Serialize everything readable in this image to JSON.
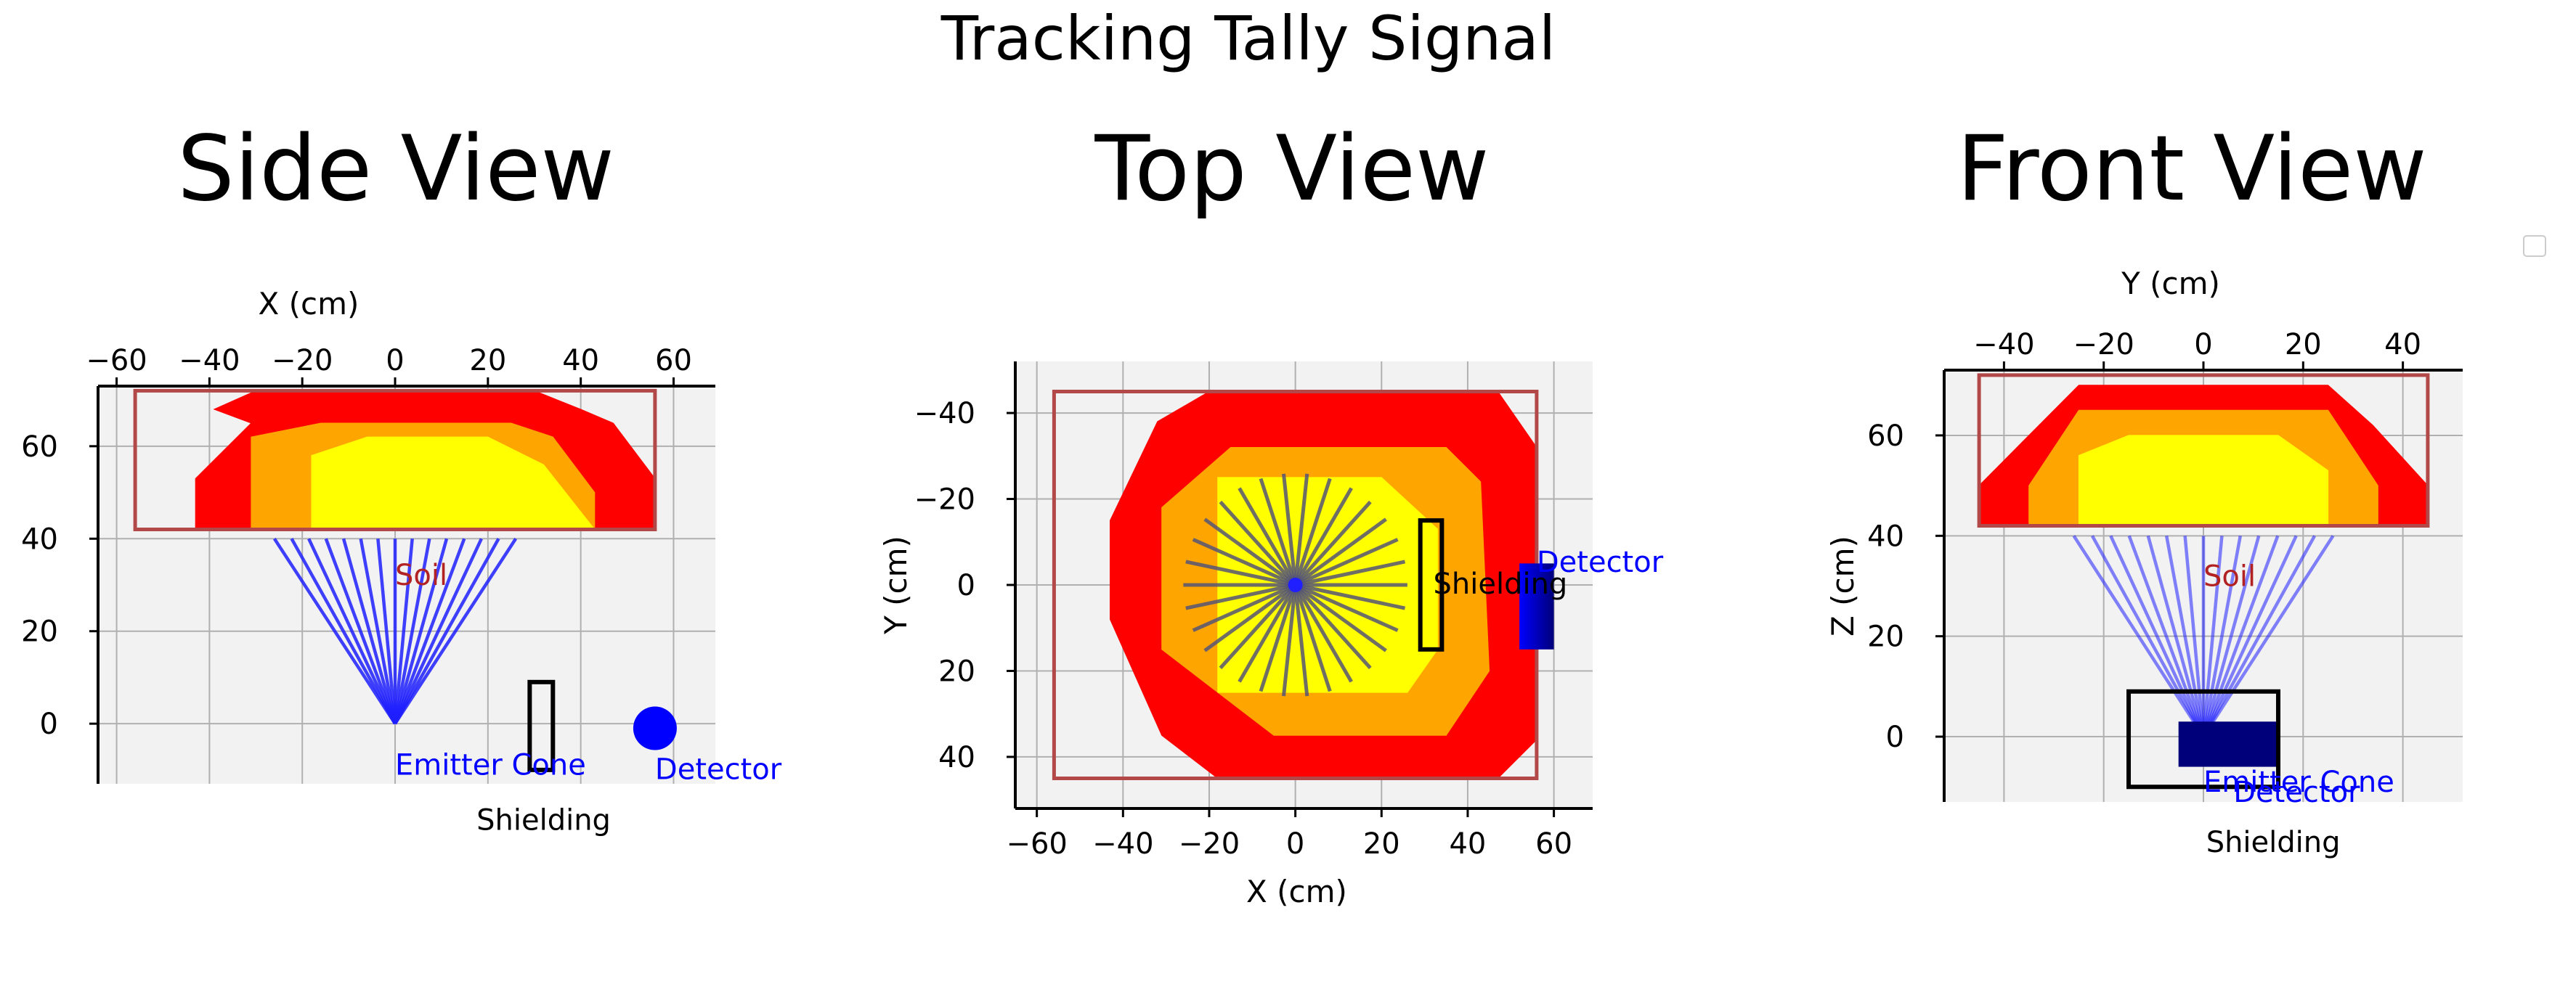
{
  "figure": {
    "suptitle": "Tracking Tally Signal"
  },
  "colors": {
    "panel_bg": "#f2f2f2",
    "grid": "#b0b0b0",
    "soil_outer": "#ff0000",
    "soil_middle": "#ffa500",
    "soil_inner": "#ffff00",
    "soil_box": "#b24848",
    "beam": "#1f1fff",
    "ray_gray": "#555577",
    "detector": "#0000ff",
    "detector_dark": "#00007a",
    "label_blue": "#0000ff",
    "soil_label": "#b22222",
    "axis": "#000000"
  },
  "chart_data": [
    {
      "id": "side",
      "type": "scatter",
      "title": "Side View",
      "xlabel": "X (cm)",
      "ylabel": "",
      "xlim": [
        -64,
        69
      ],
      "ylim": [
        73,
        -13
      ],
      "x_ticks": [
        -60,
        -40,
        -20,
        0,
        20,
        40,
        60
      ],
      "y_ticks": [
        0,
        20,
        40,
        60
      ],
      "tick_labels_x": [
        "−60",
        "−40",
        "−20",
        "0",
        "20",
        "40",
        "60"
      ],
      "tick_labels_y": [
        "0",
        "20",
        "40",
        "60"
      ],
      "grid": true,
      "soil_box": [
        [
          -56,
          42
        ],
        [
          56,
          42
        ],
        [
          56,
          72
        ],
        [
          -56,
          72
        ]
      ],
      "soil_layers": [
        {
          "name": "outer",
          "points": [
            [
              -43,
              42
            ],
            [
              56,
              42
            ],
            [
              56,
              53
            ],
            [
              47,
              65
            ],
            [
              40,
              68
            ],
            [
              30,
              72
            ],
            [
              -30,
              72
            ],
            [
              -39,
              68
            ],
            [
              -31,
              65
            ],
            [
              -43,
              53
            ]
          ]
        },
        {
          "name": "middle",
          "points": [
            [
              -31,
              42
            ],
            [
              43,
              42
            ],
            [
              43,
              50
            ],
            [
              34,
              62
            ],
            [
              25,
              65
            ],
            [
              -16,
              65
            ],
            [
              -31,
              62
            ]
          ]
        },
        {
          "name": "inner",
          "points": [
            [
              -18,
              42
            ],
            [
              43,
              42
            ],
            [
              32,
              56
            ],
            [
              20,
              62
            ],
            [
              -6,
              62
            ],
            [
              -18,
              58
            ]
          ]
        }
      ],
      "emitter": [
        0,
        0
      ],
      "beam_x_ends": [
        -26,
        -22.3,
        -18.6,
        -14.9,
        -11.1,
        -7.4,
        -3.7,
        0,
        3.7,
        7.4,
        11.1,
        14.9,
        18.6,
        22.3,
        26
      ],
      "beam_y_end": 40,
      "shielding_rect": [
        29,
        -10,
        34,
        9
      ],
      "detector": [
        56,
        -1
      ],
      "labels": [
        {
          "text": "Shielding",
          "x": 32,
          "y": -23,
          "color": "#000000"
        },
        {
          "text": "Emitter Cone",
          "x": 0,
          "y": -11,
          "color": "#0000ff"
        },
        {
          "text": "Detector",
          "x": 56,
          "y": -12,
          "color": "#0000ff"
        },
        {
          "text": "Soil",
          "x": 0,
          "y": 30,
          "color": "#b22222"
        }
      ]
    },
    {
      "id": "top",
      "type": "scatter",
      "title": "Top View",
      "xlabel": "X (cm)",
      "ylabel": "Y (cm)",
      "xlim": [
        -65,
        69
      ],
      "ylim": [
        -52,
        52
      ],
      "x_ticks": [
        -60,
        -40,
        -20,
        0,
        20,
        40,
        60
      ],
      "y_ticks": [
        -40,
        -20,
        0,
        20,
        40
      ],
      "tick_labels_x": [
        "−60",
        "−40",
        "−20",
        "0",
        "20",
        "40",
        "60"
      ],
      "tick_labels_y": [
        "−40",
        "−20",
        "0",
        "20",
        "40"
      ],
      "grid": true,
      "soil_box": [
        [
          -56,
          -45
        ],
        [
          56,
          -45
        ],
        [
          56,
          45
        ],
        [
          -56,
          45
        ]
      ],
      "soil_layers": [
        {
          "name": "outer",
          "points": [
            [
              -18,
              45
            ],
            [
              47,
              45
            ],
            [
              56,
              36
            ],
            [
              56,
              -32
            ],
            [
              47,
              -45
            ],
            [
              -20,
              -45
            ],
            [
              -32,
              -38
            ],
            [
              -43,
              -15
            ],
            [
              -43,
              8
            ],
            [
              -31,
              35
            ]
          ]
        },
        {
          "name": "middle",
          "points": [
            [
              -5,
              35
            ],
            [
              35,
              35
            ],
            [
              45,
              20
            ],
            [
              43,
              -24
            ],
            [
              35,
              -32
            ],
            [
              -15,
              -32
            ],
            [
              -31,
              -18
            ],
            [
              -31,
              15
            ]
          ]
        },
        {
          "name": "inner",
          "points": [
            [
              -18,
              25
            ],
            [
              26,
              25
            ],
            [
              33,
              15
            ],
            [
              33,
              -13
            ],
            [
              20,
              -25
            ],
            [
              -18,
              -25
            ]
          ]
        }
      ],
      "emitter": [
        0,
        0
      ],
      "ray_length": 26,
      "ray_count": 30,
      "shielding_rect": [
        29,
        -15,
        34,
        15
      ],
      "detector_rect": [
        52,
        -5,
        60,
        15
      ],
      "labels": [
        {
          "text": "Shielding",
          "x": 32,
          "y": 2,
          "color": "#000000"
        },
        {
          "text": "Detector",
          "x": 56,
          "y": -3,
          "color": "#0000ff"
        }
      ]
    },
    {
      "id": "front",
      "type": "scatter",
      "title": "Front View",
      "xlabel": "Y (cm)",
      "ylabel": "Z (cm)",
      "xlim": [
        -52,
        52
      ],
      "ylim": [
        73,
        -13
      ],
      "x_ticks": [
        -40,
        -20,
        0,
        20,
        40
      ],
      "y_ticks": [
        0,
        20,
        40,
        60
      ],
      "tick_labels_x": [
        "−40",
        "−20",
        "0",
        "20",
        "40"
      ],
      "tick_labels_y": [
        "0",
        "20",
        "40",
        "60"
      ],
      "grid": true,
      "soil_box": [
        [
          -45,
          42
        ],
        [
          45,
          42
        ],
        [
          45,
          72
        ],
        [
          -45,
          72
        ]
      ],
      "soil_layers": [
        {
          "name": "outer",
          "points": [
            [
              -45,
              42
            ],
            [
              45,
              42
            ],
            [
              45,
              50
            ],
            [
              34,
              62
            ],
            [
              25,
              70
            ],
            [
              -25,
              70
            ],
            [
              -35,
              60
            ],
            [
              -45,
              50
            ]
          ]
        },
        {
          "name": "middle",
          "points": [
            [
              -35,
              42
            ],
            [
              35,
              42
            ],
            [
              35,
              50
            ],
            [
              25,
              65
            ],
            [
              -25,
              65
            ],
            [
              -35,
              50
            ]
          ]
        },
        {
          "name": "inner",
          "points": [
            [
              -25,
              42
            ],
            [
              25,
              42
            ],
            [
              25,
              53
            ],
            [
              15,
              60
            ],
            [
              -15,
              60
            ],
            [
              -25,
              56
            ]
          ]
        }
      ],
      "emitter": [
        0,
        0
      ],
      "beam_x_ends": [
        -26,
        -22.3,
        -18.6,
        -14.9,
        -11.1,
        -7.4,
        -3.7,
        0,
        3.7,
        7.4,
        11.1,
        14.9,
        18.6,
        22.3,
        26
      ],
      "beam_y_end": 40,
      "shielding_rect": [
        -15,
        -10,
        15,
        9
      ],
      "detector_rect": [
        -5,
        -6,
        15,
        3
      ],
      "labels": [
        {
          "text": "Shielding",
          "x": 14,
          "y": -23,
          "color": "#000000"
        },
        {
          "text": "Detector",
          "x": 6,
          "y": -13,
          "color": "#0000ff"
        },
        {
          "text": "Emitter Cone",
          "x": 0,
          "y": -11,
          "color": "#0000ff"
        },
        {
          "text": "Soil",
          "x": 0,
          "y": 30,
          "color": "#b22222"
        }
      ]
    }
  ]
}
